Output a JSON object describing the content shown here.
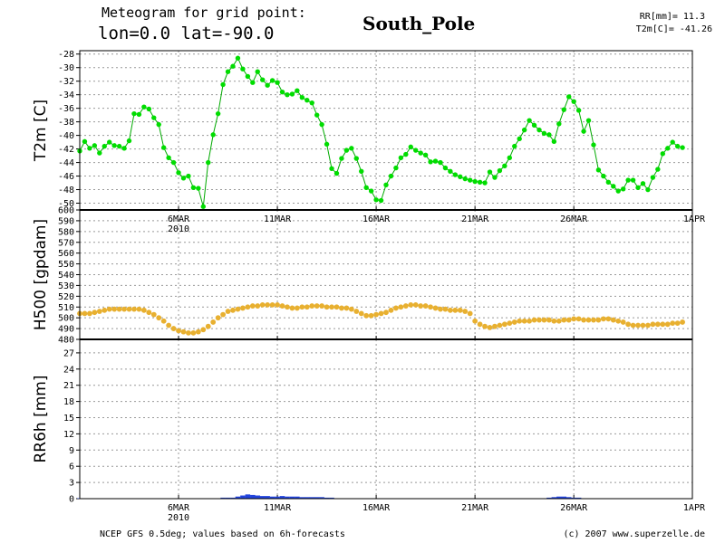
{
  "header": {
    "line1": "Meteogram for grid point:",
    "line2": "lon=0.0 lat=-90.0",
    "station": "South_Pole",
    "rr_summary": "RR[mm]= 11.3",
    "t2m_summary": "T2m[C]= -41.26"
  },
  "footer": {
    "source": "NCEP GFS 0.5deg; values based on 6h-forecasts",
    "credit": "(c) 2007 www.superzelle.de"
  },
  "colors": {
    "t2m": "#00dd00",
    "t2m_line": "#00aa00",
    "h500": "#e8b030",
    "rr6h": "#2244dd",
    "grid": "#999999"
  },
  "chart_data": [
    {
      "type": "line",
      "ylabel": "T2m [C]",
      "ylim": [
        -51,
        -27.5
      ],
      "yticks": [
        -28,
        -30,
        -32,
        -34,
        -36,
        -38,
        -40,
        -42,
        -44,
        -46,
        -48,
        -50
      ],
      "x_axis": {
        "start": "2010-03-01T00:00",
        "end": "2010-04-01T00:00",
        "step_hours": 6,
        "tick_labels": [
          "6MAR",
          "11MAR",
          "16MAR",
          "21MAR",
          "26MAR",
          "1APR"
        ],
        "year_label": "2010"
      },
      "grid": true,
      "values": [
        -42.3,
        -40.9,
        -41.9,
        -41.5,
        -42.6,
        -41.6,
        -41.0,
        -41.5,
        -41.6,
        -41.9,
        -40.8,
        -36.8,
        -36.9,
        -35.8,
        -36.1,
        -37.4,
        -38.4,
        -41.8,
        -43.3,
        -44.0,
        -45.5,
        -46.3,
        -46.0,
        -47.7,
        -47.8,
        -50.5,
        -44.0,
        -39.9,
        -36.8,
        -32.5,
        -30.6,
        -29.8,
        -28.6,
        -30.2,
        -31.3,
        -32.2,
        -30.6,
        -31.8,
        -32.6,
        -31.9,
        -32.2,
        -33.6,
        -34.0,
        -33.9,
        -33.4,
        -34.4,
        -34.8,
        -35.2,
        -37.0,
        -38.4,
        -41.3,
        -44.9,
        -45.6,
        -43.4,
        -42.2,
        -41.9,
        -43.4,
        -45.3,
        -47.7,
        -48.2,
        -49.5,
        -49.6,
        -47.3,
        -46.0,
        -44.8,
        -43.3,
        -42.8,
        -41.7,
        -42.2,
        -42.6,
        -42.9,
        -43.9,
        -43.8,
        -44.0,
        -44.8,
        -45.3,
        -45.8,
        -46.1,
        -46.4,
        -46.6,
        -46.8,
        -46.9,
        -47.0,
        -45.4,
        -46.2,
        -45.2,
        -44.5,
        -43.3,
        -41.6,
        -40.5,
        -39.2,
        -37.8,
        -38.5,
        -39.2,
        -39.7,
        -39.9,
        -40.9,
        -38.3,
        -36.2,
        -34.3,
        -35.0,
        -36.3,
        -39.4,
        -37.8,
        -41.4,
        -45.1,
        -46.0,
        -46.9,
        -47.5,
        -48.2,
        -47.9,
        -46.6,
        -46.6,
        -47.7,
        -47.1,
        -48.0,
        -46.2,
        -45.0,
        -42.7,
        -41.9,
        -41.0,
        -41.6,
        -41.8
      ]
    },
    {
      "type": "line",
      "ylabel": "H500 [gpdam]",
      "ylim": [
        480,
        600
      ],
      "yticks": [
        480,
        490,
        500,
        510,
        520,
        530,
        540,
        550,
        560,
        570,
        580,
        590,
        600
      ],
      "grid": true,
      "values": [
        504,
        504,
        504,
        505,
        506,
        507,
        508,
        508,
        508,
        508,
        508,
        508,
        508,
        507,
        505,
        503,
        500,
        497,
        493,
        490,
        488,
        487,
        486,
        486,
        487,
        489,
        492,
        496,
        500,
        503,
        506,
        507,
        508,
        509,
        510,
        511,
        511,
        512,
        512,
        512,
        512,
        511,
        510,
        509,
        509,
        510,
        510,
        511,
        511,
        511,
        510,
        510,
        510,
        509,
        509,
        508,
        506,
        504,
        502,
        502,
        503,
        504,
        505,
        507,
        509,
        510,
        511,
        512,
        512,
        511,
        511,
        510,
        509,
        508,
        508,
        507,
        507,
        507,
        506,
        504,
        497,
        494,
        492,
        491,
        492,
        493,
        494,
        495,
        496,
        497,
        497,
        497,
        498,
        498,
        498,
        498,
        497,
        497,
        498,
        498,
        499,
        499,
        498,
        498,
        498,
        498,
        499,
        499,
        498,
        497,
        496,
        494,
        493,
        493,
        493,
        493,
        494,
        494,
        494,
        494,
        495,
        495,
        496
      ]
    },
    {
      "type": "bar",
      "ylabel": "RR6h [mm]",
      "ylim": [
        0,
        29.5
      ],
      "yticks": [
        0,
        3,
        6,
        9,
        12,
        15,
        18,
        21,
        24,
        27
      ],
      "grid": true,
      "values": [
        0,
        0,
        0,
        0,
        0,
        0,
        0,
        0,
        0,
        0,
        0,
        0,
        0,
        0,
        0,
        0,
        0,
        0,
        0,
        0,
        0,
        0,
        0,
        0,
        0,
        0,
        0,
        0,
        0,
        0.1,
        0.1,
        0.1,
        0.3,
        0.5,
        0.7,
        0.6,
        0.5,
        0.4,
        0.4,
        0.3,
        0.3,
        0.4,
        0.3,
        0.3,
        0.3,
        0.2,
        0.2,
        0.2,
        0.2,
        0.2,
        0.1,
        0.1,
        0,
        0,
        0,
        0,
        0,
        0,
        0,
        0,
        0,
        0,
        0,
        0,
        0,
        0,
        0,
        0,
        0,
        0,
        0,
        0,
        0,
        0,
        0,
        0,
        0,
        0,
        0,
        0,
        0,
        0,
        0,
        0,
        0,
        0,
        0,
        0,
        0,
        0,
        0,
        0,
        0,
        0,
        0,
        0.1,
        0.2,
        0.3,
        0.3,
        0.2,
        0.1,
        0.1,
        0,
        0,
        0,
        0,
        0,
        0,
        0,
        0,
        0,
        0,
        0,
        0,
        0,
        0,
        0,
        0,
        0,
        0,
        0,
        0
      ]
    }
  ]
}
